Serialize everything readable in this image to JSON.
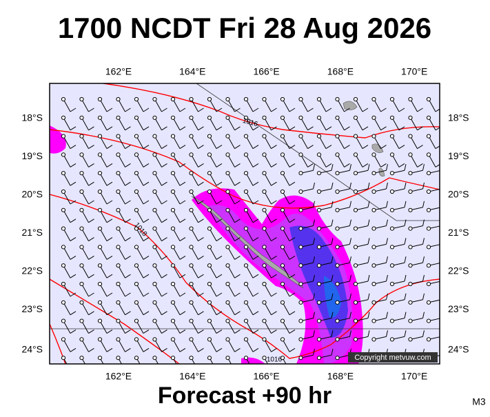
{
  "title": "1700 NCDT Fri 28 Aug 2026",
  "footer": "Forecast +90 hr",
  "model": "M3",
  "copyright": "Copyright metvuw.com",
  "longitudes": [
    "162°E",
    "164°E",
    "166°E",
    "168°E",
    "170°E"
  ],
  "latitudes": [
    "18°S",
    "19°S",
    "20°S",
    "21°S",
    "22°S",
    "23°S",
    "24°S"
  ],
  "isobar_labels": [
    "1016",
    "1018",
    "1016"
  ]
}
